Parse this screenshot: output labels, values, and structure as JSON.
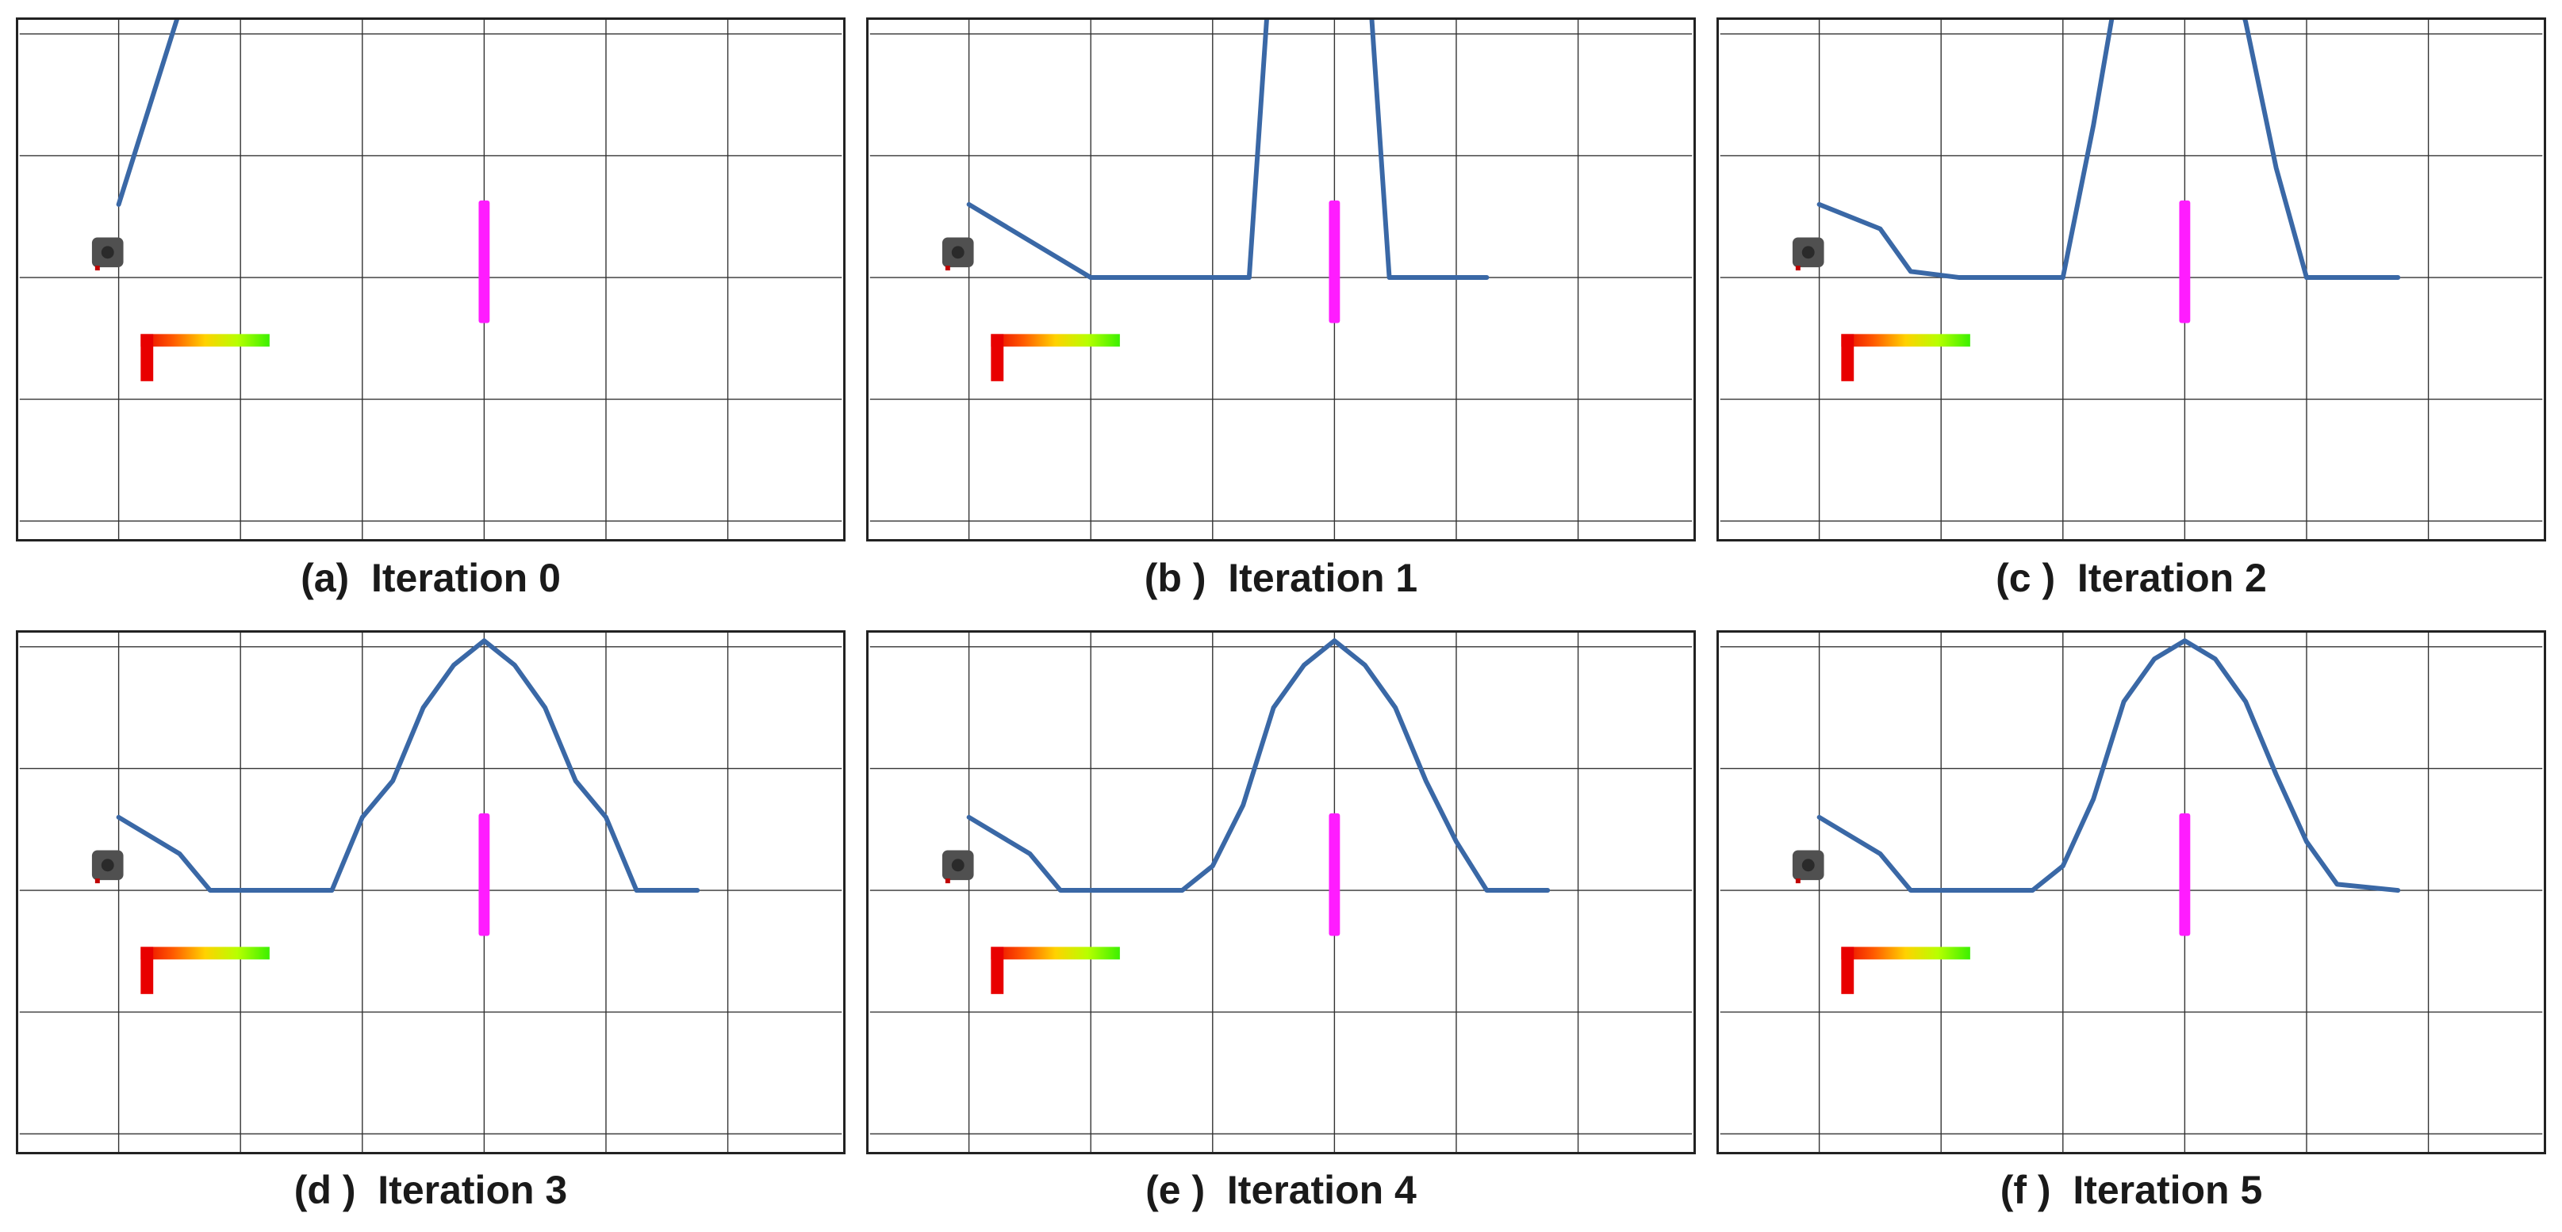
{
  "panels": [
    {
      "caption": "(a)  Iteration 0",
      "path": [
        [
          0,
          5.6
        ],
        [
          1.1,
          7.35
        ],
        [
          11.2,
          7.35
        ]
      ]
    },
    {
      "caption": "(b )  Iteration 1",
      "path": [
        [
          0,
          5.6
        ],
        [
          2.0,
          5.0
        ],
        [
          3.0,
          5.0
        ],
        [
          4.4,
          5.0
        ],
        [
          4.6,
          5.0
        ],
        [
          5.0,
          7.95
        ],
        [
          6.0,
          7.95
        ],
        [
          6.5,
          7.95
        ],
        [
          6.9,
          5.0
        ],
        [
          7.4,
          5.0
        ],
        [
          8.5,
          5.0
        ]
      ]
    },
    {
      "caption": "(c )  Iteration 2",
      "path": [
        [
          0,
          5.6
        ],
        [
          1.0,
          5.4
        ],
        [
          1.5,
          5.05
        ],
        [
          2.3,
          5.0
        ],
        [
          3.5,
          5.0
        ],
        [
          4.0,
          5.0
        ],
        [
          4.5,
          6.25
        ],
        [
          5.0,
          7.7
        ],
        [
          5.5,
          7.95
        ],
        [
          6.5,
          7.95
        ],
        [
          7.0,
          7.1
        ],
        [
          7.5,
          5.9
        ],
        [
          8.0,
          5.0
        ],
        [
          9.5,
          5.0
        ]
      ]
    },
    {
      "caption": "(d )  Iteration 3",
      "path": [
        [
          0,
          5.6
        ],
        [
          1.0,
          5.3
        ],
        [
          1.5,
          5.0
        ],
        [
          2.5,
          5.0
        ],
        [
          3.5,
          5.0
        ],
        [
          4.0,
          5.6
        ],
        [
          4.5,
          5.9
        ],
        [
          5.0,
          6.5
        ],
        [
          5.5,
          6.85
        ],
        [
          6.0,
          7.05
        ],
        [
          6.5,
          6.85
        ],
        [
          7.0,
          6.5
        ],
        [
          7.5,
          5.9
        ],
        [
          8.0,
          5.6
        ],
        [
          8.5,
          5.0
        ],
        [
          9.5,
          5.0
        ]
      ]
    },
    {
      "caption": "(e )  Iteration 4",
      "path": [
        [
          0,
          5.6
        ],
        [
          1.0,
          5.3
        ],
        [
          1.5,
          5.0
        ],
        [
          2.5,
          5.0
        ],
        [
          3.5,
          5.0
        ],
        [
          4.0,
          5.2
        ],
        [
          4.5,
          5.7
        ],
        [
          5.0,
          6.5
        ],
        [
          5.5,
          6.85
        ],
        [
          6.0,
          7.05
        ],
        [
          6.5,
          6.85
        ],
        [
          7.0,
          6.5
        ],
        [
          7.5,
          5.9
        ],
        [
          8.0,
          5.4
        ],
        [
          8.5,
          5.0
        ],
        [
          9.5,
          5.0
        ]
      ]
    },
    {
      "caption": "(f )  Iteration 5",
      "path": [
        [
          0,
          5.6
        ],
        [
          1.0,
          5.3
        ],
        [
          1.5,
          5.0
        ],
        [
          2.5,
          5.0
        ],
        [
          3.5,
          5.0
        ],
        [
          4.0,
          5.2
        ],
        [
          4.5,
          5.75
        ],
        [
          5.0,
          6.55
        ],
        [
          5.5,
          6.9
        ],
        [
          6.0,
          7.05
        ],
        [
          6.5,
          6.9
        ],
        [
          7.0,
          6.55
        ],
        [
          7.5,
          5.95
        ],
        [
          8.0,
          5.4
        ],
        [
          8.5,
          5.05
        ],
        [
          9.5,
          5.0
        ]
      ]
    }
  ],
  "colors": {
    "path": "#3a68a6",
    "obstacle": "#ff1cff",
    "robot": "#505050",
    "grid": "#333333",
    "gradient": [
      "#e80000",
      "#ff5a00",
      "#ffd200",
      "#b8ff00",
      "#3cf000"
    ]
  },
  "icons": {
    "robot": "robot-icon"
  }
}
